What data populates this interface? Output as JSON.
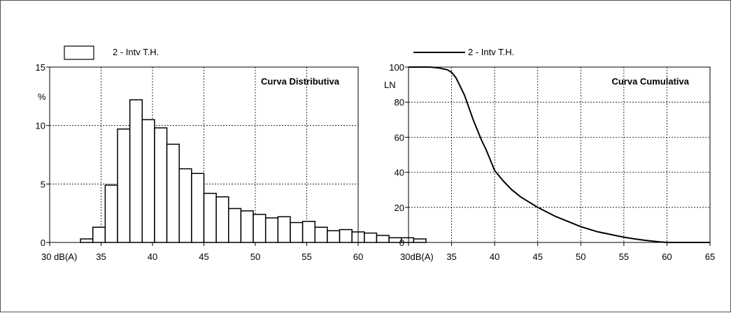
{
  "chart_data": [
    {
      "type": "bar",
      "title": "Curva Distributiva",
      "legend": "2 - Intv T.H.",
      "ylabel": "%",
      "xlabel": "dB(A)",
      "xlim": [
        30,
        60
      ],
      "ylim": [
        0,
        15
      ],
      "x_ticks": [
        30,
        35,
        40,
        45,
        50,
        55,
        60
      ],
      "y_ticks": [
        0,
        5,
        10,
        15
      ],
      "x_first_label": "30 dB(A)",
      "bin_width": 1.2,
      "bin_start": 33.0,
      "values": [
        0.3,
        1.3,
        4.9,
        9.7,
        12.2,
        10.5,
        9.8,
        8.4,
        6.3,
        5.9,
        4.2,
        3.9,
        2.9,
        2.7,
        2.4,
        2.1,
        2.2,
        1.7,
        1.8,
        1.3,
        1.0,
        1.1,
        0.9,
        0.8,
        0.6,
        0.4,
        0.4,
        0.3
      ]
    },
    {
      "type": "line",
      "title": "Curva Cumulativa",
      "legend": "2 - Intv T.H.",
      "ylabel": "LN",
      "xlabel": "dB(A)",
      "xlim": [
        30,
        65
      ],
      "ylim": [
        0,
        100
      ],
      "x_ticks": [
        30,
        35,
        40,
        45,
        50,
        55,
        60,
        65
      ],
      "y_ticks": [
        0,
        20,
        40,
        60,
        80,
        100
      ],
      "x_first_label": "30dB(A)",
      "series": [
        {
          "x": [
            30,
            32.5,
            33.5,
            34.5,
            35,
            35.5,
            36,
            36.5,
            37,
            37.5,
            38,
            38.5,
            39,
            39.5,
            40,
            41,
            42,
            43,
            44,
            45,
            46,
            47,
            48,
            49,
            50,
            51,
            52,
            53,
            54,
            55,
            56,
            57,
            58,
            59,
            60,
            65
          ],
          "y": [
            100,
            100,
            99.5,
            98.5,
            97,
            94,
            89,
            84,
            77,
            70,
            64,
            58,
            53,
            47,
            41,
            35,
            30,
            26,
            23,
            20,
            17.5,
            15,
            13,
            11,
            9,
            7.5,
            6,
            5,
            4,
            3,
            2.2,
            1.5,
            0.9,
            0.4,
            0,
            0
          ]
        }
      ]
    }
  ]
}
